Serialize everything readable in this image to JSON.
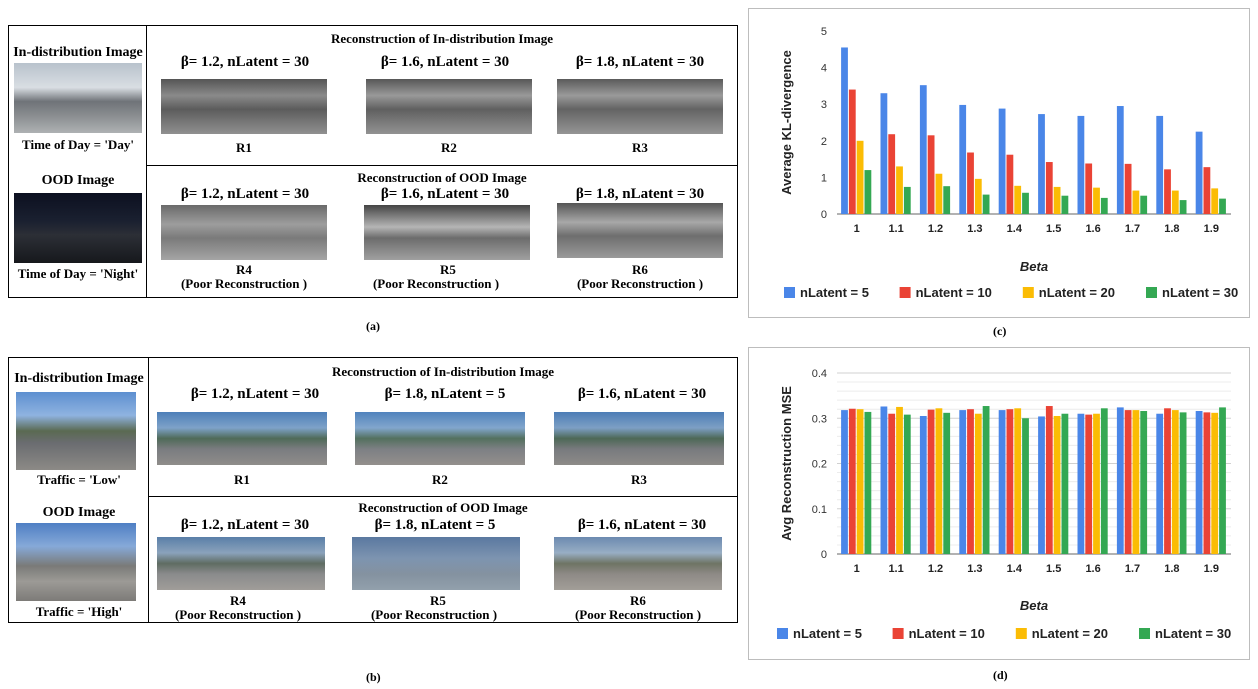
{
  "panel_a": {
    "left_title": "In-distribution Image",
    "left_caption": "Time of Day = 'Day'",
    "ood_title": "OOD Image",
    "ood_caption": "Time of Day = 'Night'",
    "top_header": "Reconstruction of In-distribution Image",
    "bottom_header": "Reconstruction of OOD Image",
    "top_params": [
      "β= 1.2, nLatent = 30",
      "β= 1.6, nLatent = 30",
      "β= 1.8, nLatent = 30"
    ],
    "top_labels": [
      "R1",
      "R2",
      "R3"
    ],
    "bottom_params": [
      "β= 1.2, nLatent = 30",
      "β= 1.6, nLatent = 30",
      "β= 1.8, nLatent = 30"
    ],
    "bottom_labels": [
      "R4",
      "R5",
      "R6"
    ],
    "poor": "(Poor Reconstruction )",
    "figure_label": "(a)"
  },
  "panel_b": {
    "left_title": "In-distribution Image",
    "left_caption": "Traffic = 'Low'",
    "ood_title": "OOD Image",
    "ood_caption": "Traffic = 'High'",
    "top_header": "Reconstruction of In-distribution Image",
    "bottom_header": "Reconstruction of OOD Image",
    "top_params": [
      "β= 1.2, nLatent = 30",
      "β= 1.8, nLatent = 5",
      "β= 1.6, nLatent = 30"
    ],
    "top_labels": [
      "R1",
      "R2",
      "R3"
    ],
    "bottom_params": [
      "β= 1.2, nLatent = 30",
      "β= 1.8, nLatent = 5",
      "β= 1.6, nLatent = 30"
    ],
    "bottom_labels": [
      "R4",
      "R5",
      "R6"
    ],
    "poor": "(Poor Reconstruction )",
    "figure_label": "(b)"
  },
  "colors": {
    "nLatent5": "#4a86e8",
    "nLatent10": "#ea4335",
    "nLatent20": "#fbbc04",
    "nLatent30": "#34a853"
  },
  "chart_data": [
    {
      "type": "bar",
      "figure_label": "(c)",
      "categories": [
        "1",
        "1.1",
        "1.2",
        "1.3",
        "1.4",
        "1.5",
        "1.6",
        "1.7",
        "1.8",
        "1.9"
      ],
      "series": [
        {
          "name": "nLatent = 5",
          "values": [
            4.55,
            3.3,
            3.52,
            2.98,
            2.88,
            2.73,
            2.68,
            2.95,
            2.68,
            2.25
          ]
        },
        {
          "name": "nLatent = 10",
          "values": [
            3.4,
            2.18,
            2.15,
            1.68,
            1.62,
            1.42,
            1.38,
            1.37,
            1.22,
            1.28
          ]
        },
        {
          "name": "nLatent = 20",
          "values": [
            2.0,
            1.3,
            1.1,
            0.96,
            0.77,
            0.74,
            0.72,
            0.64,
            0.64,
            0.7
          ]
        },
        {
          "name": "nLatent = 30",
          "values": [
            1.2,
            0.74,
            0.76,
            0.53,
            0.58,
            0.5,
            0.44,
            0.5,
            0.38,
            0.42
          ]
        }
      ],
      "xlabel": "Beta",
      "ylabel": "Average KL-divergence",
      "ylim": [
        0,
        5
      ],
      "yticks": [
        "0",
        "1",
        "2",
        "3",
        "4",
        "5"
      ],
      "grid": false,
      "legend": "bottom"
    },
    {
      "type": "bar",
      "figure_label": "(d)",
      "categories": [
        "1",
        "1.1",
        "1.2",
        "1.3",
        "1.4",
        "1.5",
        "1.6",
        "1.7",
        "1.8",
        "1.9"
      ],
      "series": [
        {
          "name": "nLatent = 5",
          "values": [
            0.318,
            0.326,
            0.305,
            0.318,
            0.318,
            0.304,
            0.31,
            0.324,
            0.31,
            0.316
          ]
        },
        {
          "name": "nLatent = 10",
          "values": [
            0.321,
            0.31,
            0.319,
            0.32,
            0.32,
            0.327,
            0.308,
            0.318,
            0.322,
            0.313
          ]
        },
        {
          "name": "nLatent = 20",
          "values": [
            0.32,
            0.325,
            0.322,
            0.31,
            0.322,
            0.305,
            0.31,
            0.318,
            0.318,
            0.312
          ]
        },
        {
          "name": "nLatent = 30",
          "values": [
            0.314,
            0.308,
            0.312,
            0.327,
            0.3,
            0.31,
            0.322,
            0.316,
            0.313,
            0.324
          ]
        }
      ],
      "xlabel": "Beta",
      "ylabel": "Avg Reconstruction MSE",
      "ylim": [
        0,
        0.4
      ],
      "yticks": [
        "0",
        "0.1",
        "0.2",
        "0.3",
        "0.4"
      ],
      "grid": true,
      "legend": "bottom"
    }
  ]
}
